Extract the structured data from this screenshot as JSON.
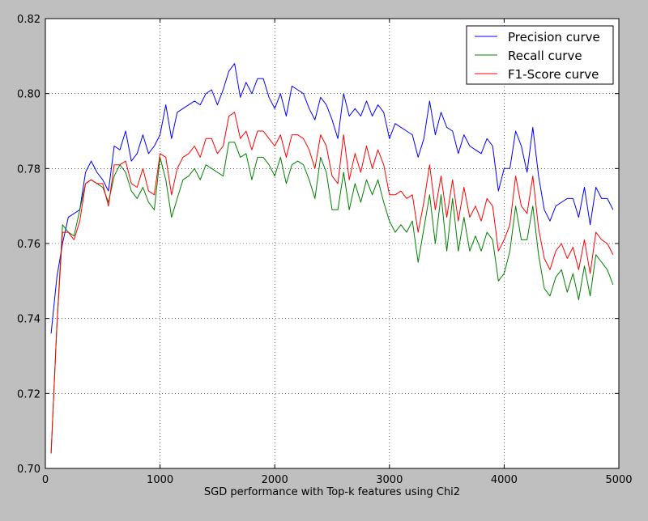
{
  "chart_data": {
    "type": "line",
    "xlabel": "SGD performance with Top-k features using Chi2",
    "ylabel": "",
    "xlim": [
      0,
      5000
    ],
    "ylim": [
      0.7,
      0.82
    ],
    "xticks": [
      0,
      1000,
      2000,
      3000,
      4000,
      5000
    ],
    "xtick_labels": [
      "0",
      "1000",
      "2000",
      "3000",
      "4000",
      "5000"
    ],
    "yticks": [
      0.7,
      0.72,
      0.74,
      0.76,
      0.78,
      0.8,
      0.82
    ],
    "ytick_labels": [
      "0.70",
      "0.72",
      "0.74",
      "0.76",
      "0.78",
      "0.80",
      "0.82"
    ],
    "grid": true,
    "legend_position": "top-right",
    "x": [
      50,
      100,
      150,
      200,
      250,
      300,
      350,
      400,
      450,
      500,
      550,
      600,
      650,
      700,
      750,
      800,
      850,
      900,
      950,
      1000,
      1050,
      1100,
      1150,
      1200,
      1250,
      1300,
      1350,
      1400,
      1450,
      1500,
      1550,
      1600,
      1650,
      1700,
      1750,
      1800,
      1850,
      1900,
      1950,
      2000,
      2050,
      2100,
      2150,
      2200,
      2250,
      2300,
      2350,
      2400,
      2450,
      2500,
      2550,
      2600,
      2650,
      2700,
      2750,
      2800,
      2850,
      2900,
      2950,
      3000,
      3050,
      3100,
      3150,
      3200,
      3250,
      3300,
      3350,
      3400,
      3450,
      3500,
      3550,
      3600,
      3650,
      3700,
      3750,
      3800,
      3850,
      3900,
      3950,
      4000,
      4050,
      4100,
      4150,
      4200,
      4250,
      4300,
      4350,
      4400,
      4450,
      4500,
      4550,
      4600,
      4650,
      4700,
      4750,
      4800,
      4850,
      4900,
      4950
    ],
    "series": [
      {
        "name": "Precision curve",
        "color": "#0000ff",
        "values": [
          0.736,
          0.751,
          0.76,
          0.767,
          0.768,
          0.769,
          0.779,
          0.782,
          0.779,
          0.777,
          0.774,
          0.786,
          0.785,
          0.79,
          0.782,
          0.784,
          0.789,
          0.784,
          0.786,
          0.789,
          0.797,
          0.788,
          0.795,
          0.796,
          0.797,
          0.798,
          0.797,
          0.8,
          0.801,
          0.797,
          0.801,
          0.806,
          0.808,
          0.799,
          0.803,
          0.8,
          0.804,
          0.804,
          0.799,
          0.796,
          0.8,
          0.794,
          0.802,
          0.801,
          0.8,
          0.796,
          0.793,
          0.799,
          0.797,
          0.793,
          0.788,
          0.8,
          0.794,
          0.796,
          0.794,
          0.798,
          0.794,
          0.797,
          0.795,
          0.788,
          0.792,
          0.791,
          0.79,
          0.789,
          0.783,
          0.788,
          0.798,
          0.789,
          0.795,
          0.791,
          0.79,
          0.784,
          0.789,
          0.786,
          0.785,
          0.784,
          0.788,
          0.786,
          0.774,
          0.78,
          0.78,
          0.79,
          0.786,
          0.779,
          0.791,
          0.778,
          0.769,
          0.766,
          0.77,
          0.771,
          0.772,
          0.772,
          0.767,
          0.775,
          0.765,
          0.775,
          0.772,
          0.772,
          0.769
        ]
      },
      {
        "name": "Recall curve",
        "color": "#008000",
        "values": [
          0.704,
          0.738,
          0.765,
          0.763,
          0.762,
          0.769,
          0.776,
          0.777,
          0.776,
          0.775,
          0.771,
          0.778,
          0.781,
          0.779,
          0.774,
          0.772,
          0.775,
          0.771,
          0.769,
          0.783,
          0.777,
          0.767,
          0.772,
          0.777,
          0.778,
          0.78,
          0.777,
          0.781,
          0.78,
          0.779,
          0.778,
          0.787,
          0.787,
          0.783,
          0.784,
          0.777,
          0.783,
          0.783,
          0.781,
          0.778,
          0.783,
          0.776,
          0.781,
          0.782,
          0.781,
          0.777,
          0.772,
          0.783,
          0.779,
          0.769,
          0.769,
          0.779,
          0.769,
          0.776,
          0.771,
          0.777,
          0.773,
          0.777,
          0.771,
          0.766,
          0.763,
          0.765,
          0.763,
          0.766,
          0.755,
          0.764,
          0.773,
          0.76,
          0.773,
          0.758,
          0.772,
          0.758,
          0.767,
          0.758,
          0.762,
          0.758,
          0.763,
          0.761,
          0.75,
          0.752,
          0.758,
          0.77,
          0.761,
          0.761,
          0.77,
          0.757,
          0.748,
          0.746,
          0.751,
          0.753,
          0.747,
          0.752,
          0.745,
          0.754,
          0.746,
          0.757,
          0.755,
          0.753,
          0.749
        ]
      },
      {
        "name": "F1-Score curve",
        "color": "#ff0000",
        "values": [
          0.704,
          0.738,
          0.763,
          0.763,
          0.761,
          0.766,
          0.776,
          0.777,
          0.776,
          0.776,
          0.77,
          0.781,
          0.781,
          0.782,
          0.776,
          0.775,
          0.78,
          0.774,
          0.773,
          0.784,
          0.783,
          0.773,
          0.78,
          0.783,
          0.784,
          0.786,
          0.783,
          0.788,
          0.788,
          0.784,
          0.786,
          0.794,
          0.795,
          0.788,
          0.79,
          0.785,
          0.79,
          0.79,
          0.788,
          0.786,
          0.789,
          0.783,
          0.789,
          0.789,
          0.788,
          0.785,
          0.78,
          0.789,
          0.786,
          0.778,
          0.776,
          0.789,
          0.777,
          0.784,
          0.779,
          0.786,
          0.78,
          0.785,
          0.781,
          0.773,
          0.773,
          0.774,
          0.772,
          0.773,
          0.763,
          0.771,
          0.781,
          0.769,
          0.778,
          0.767,
          0.777,
          0.766,
          0.775,
          0.767,
          0.77,
          0.766,
          0.772,
          0.77,
          0.758,
          0.761,
          0.765,
          0.778,
          0.77,
          0.768,
          0.778,
          0.764,
          0.756,
          0.753,
          0.758,
          0.76,
          0.756,
          0.759,
          0.753,
          0.761,
          0.752,
          0.763,
          0.761,
          0.76,
          0.757
        ]
      }
    ]
  }
}
